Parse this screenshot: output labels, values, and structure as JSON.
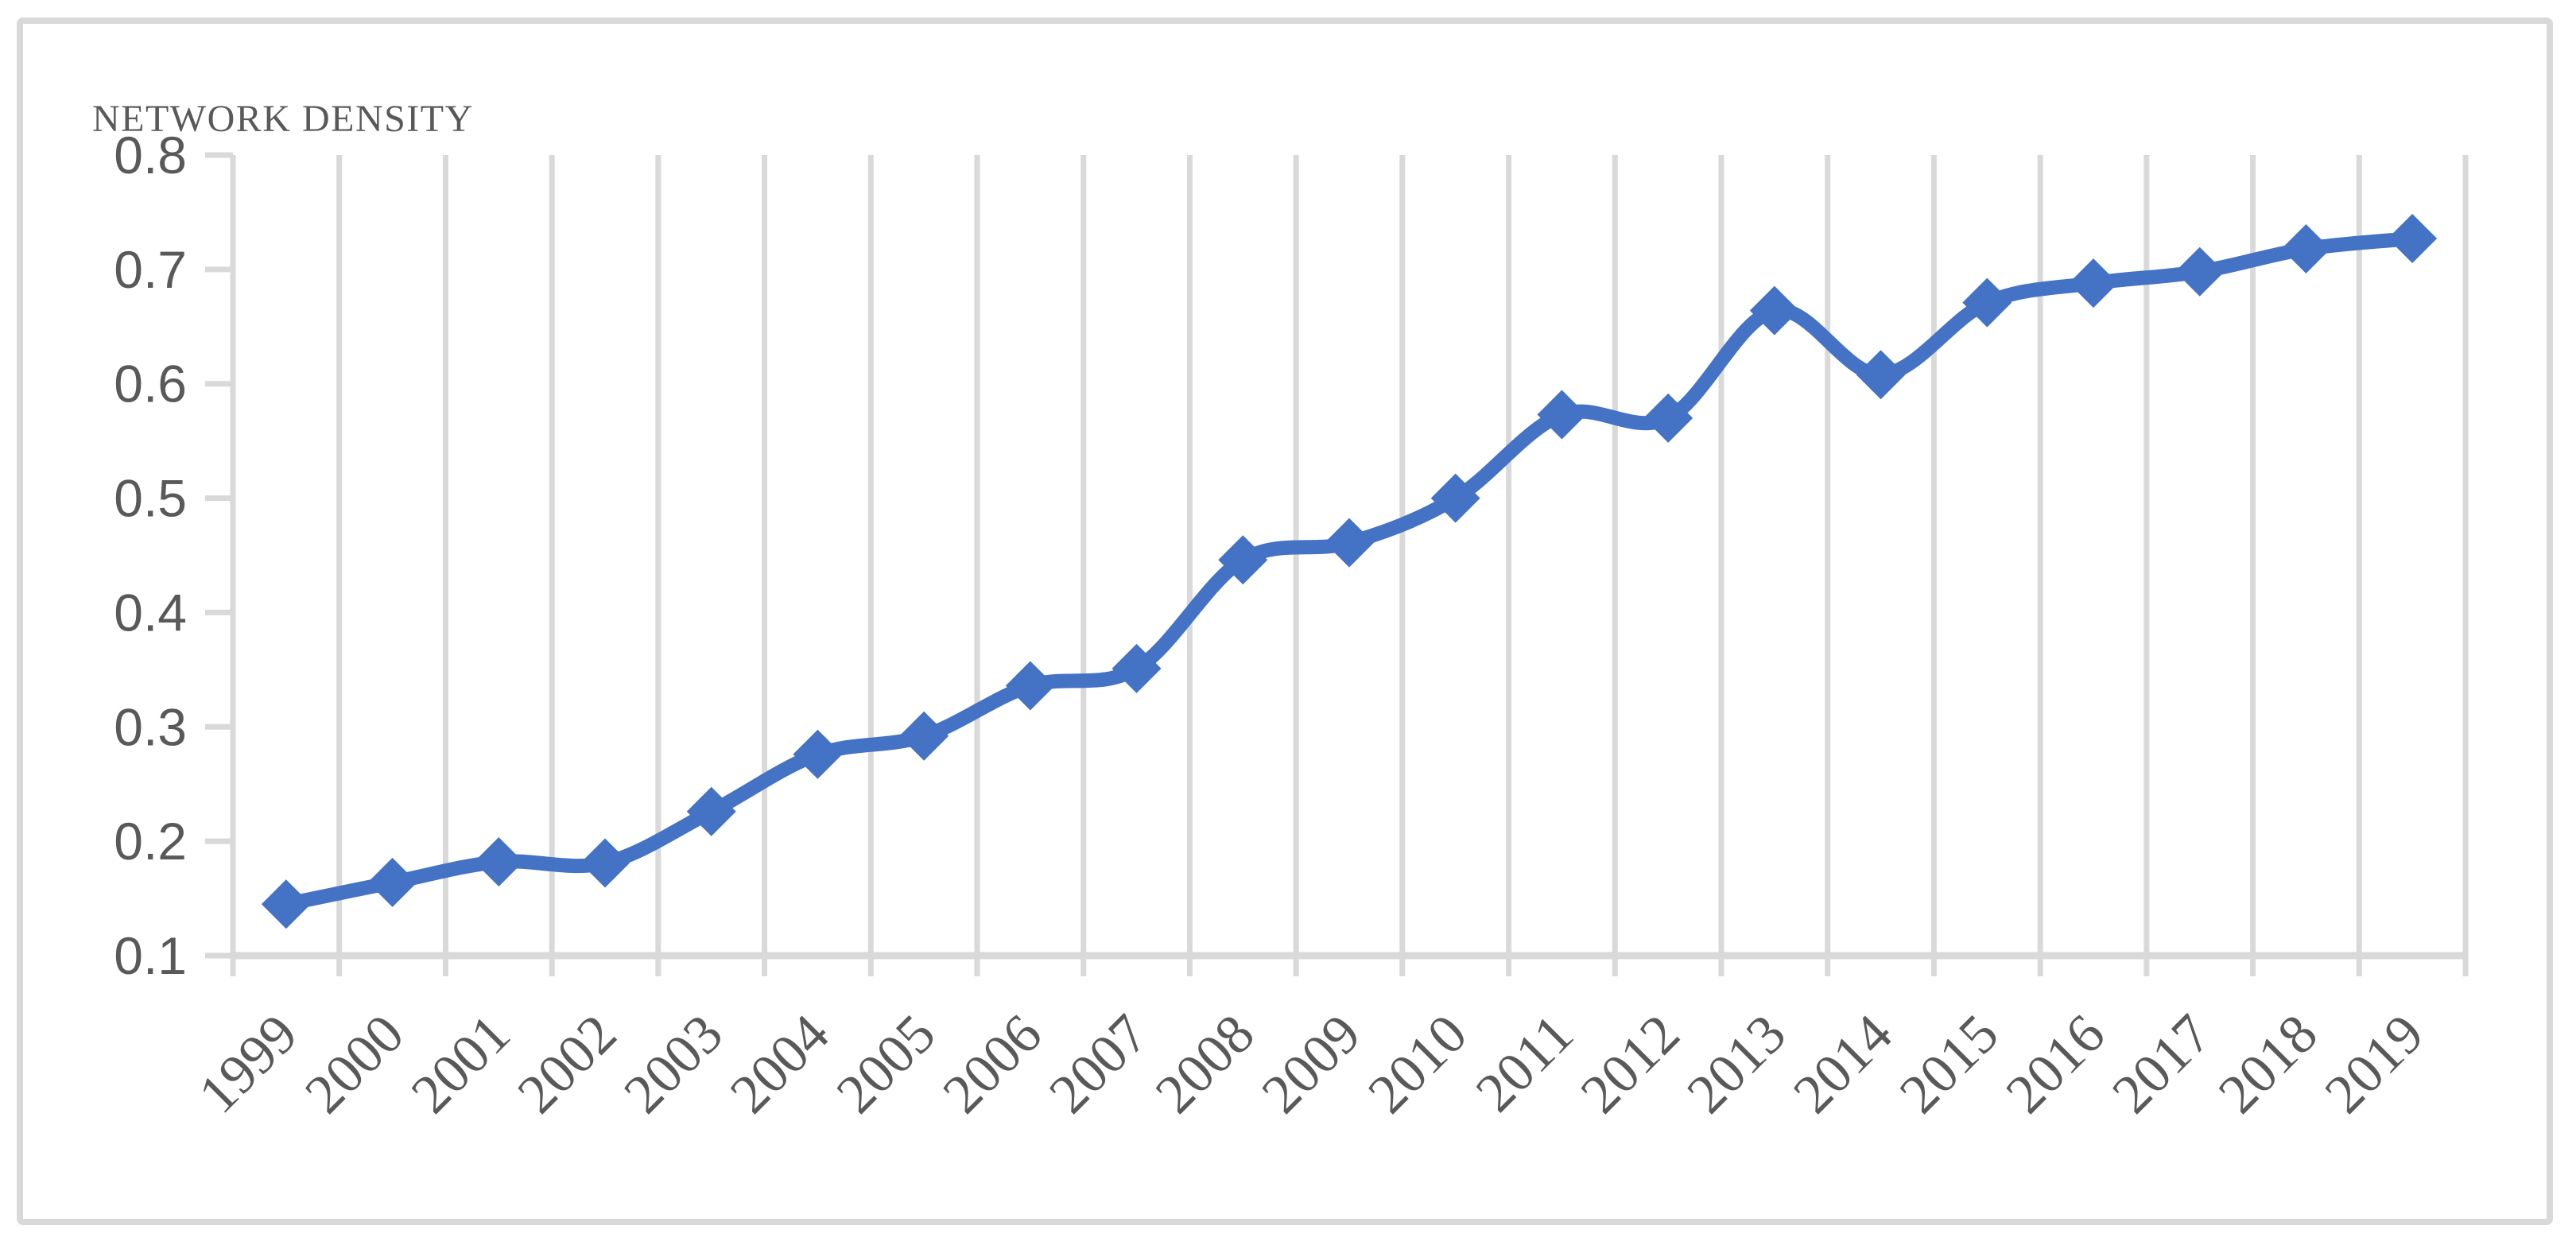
{
  "chart_data": {
    "type": "line",
    "title": "NETWORK DENSITY",
    "categories": [
      "1999",
      "2000",
      "2001",
      "2002",
      "2003",
      "2004",
      "2005",
      "2006",
      "2007",
      "2008",
      "2009",
      "2010",
      "2011",
      "2012",
      "2013",
      "2014",
      "2015",
      "2016",
      "2017",
      "2018",
      "2019"
    ],
    "values": [
      0.145,
      0.164,
      0.182,
      0.181,
      0.226,
      0.276,
      0.292,
      0.336,
      0.351,
      0.446,
      0.461,
      0.5,
      0.573,
      0.57,
      0.664,
      0.608,
      0.671,
      0.688,
      0.698,
      0.718,
      0.727
    ],
    "xlabel": "",
    "ylabel": "",
    "ylim": [
      0.1,
      0.8
    ],
    "ytick_step": 0.1,
    "yticks": [
      "0.8",
      "0.7",
      "0.6",
      "0.5",
      "0.4",
      "0.3",
      "0.2",
      "0.1"
    ],
    "grid": "vertical-only",
    "legend": "none",
    "marker": "diamond",
    "smooth_line": true,
    "colors": {
      "line": "#4472C4",
      "gridline": "#D9D9D9",
      "axis": "#D9D9D9",
      "text": "#595959",
      "border": "#D9D9D9",
      "background": "#FFFFFF"
    }
  }
}
